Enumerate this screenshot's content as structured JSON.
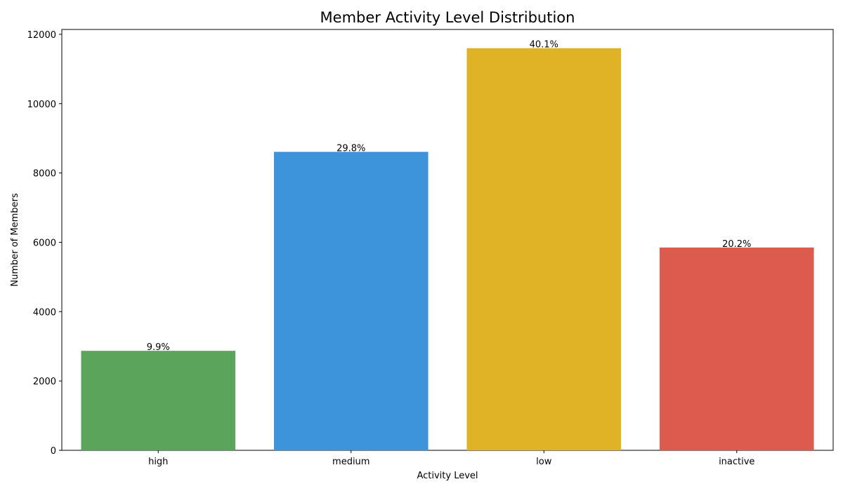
{
  "chart_data": {
    "type": "bar",
    "title": "Member Activity Level Distribution",
    "x_label": "Activity Level",
    "y_label": "Number of Members",
    "categories": [
      "high",
      "medium",
      "low",
      "inactive"
    ],
    "values": [
      2870,
      8610,
      11600,
      5850
    ],
    "percent_labels": [
      "9.9%",
      "29.8%",
      "40.1%",
      "20.2%"
    ],
    "colors": [
      "#5aa45b",
      "#3d94da",
      "#dfb325",
      "#dc5a4e"
    ],
    "ylim": [
      0,
      12140
    ],
    "yticks": [
      0,
      2000,
      4000,
      6000,
      8000,
      10000,
      12000
    ],
    "grid": false
  }
}
